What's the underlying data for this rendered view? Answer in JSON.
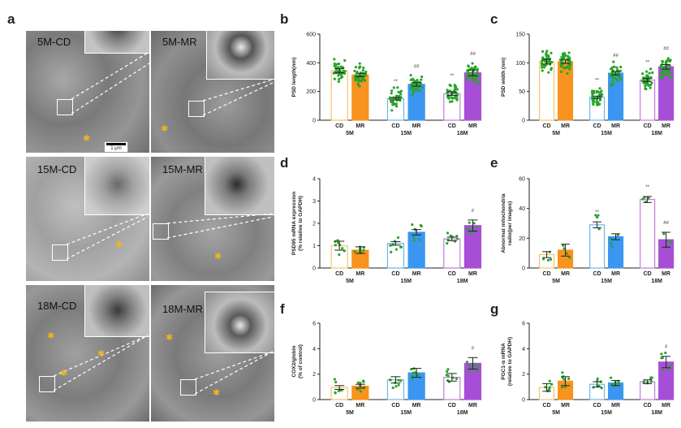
{
  "panel_letters": {
    "a": "a",
    "b": "b",
    "c": "c",
    "d": "d",
    "e": "e",
    "f": "f",
    "g": "g"
  },
  "em_panels": [
    {
      "label": "5M-CD"
    },
    {
      "label": "5M-MR"
    },
    {
      "label": "15M-CD"
    },
    {
      "label": "15M-MR"
    },
    {
      "label": "18M-CD"
    },
    {
      "label": "18M-MR"
    }
  ],
  "scale_bar_label": "1 μm",
  "colors": {
    "cd5": "#f5c36b",
    "mr5": "#f7931e",
    "cd15": "#6bb6f0",
    "mr15": "#3a96f0",
    "cd18": "#c47be0",
    "mr18": "#a64fd6",
    "dots": "#2aa52a",
    "err": "#222222"
  },
  "chart_data": [
    {
      "panel": "b",
      "type": "bar",
      "ylabel": "PSD length(nm)",
      "ylim": [
        0,
        600
      ],
      "yticks": [
        0,
        200,
        400,
        600
      ],
      "groups": [
        "5M",
        "15M",
        "18M"
      ],
      "categories": [
        "CD",
        "MR",
        "CD",
        "MR",
        "CD",
        "MR"
      ],
      "values": [
        345,
        315,
        150,
        250,
        185,
        330
      ],
      "errors": [
        15,
        12,
        8,
        12,
        12,
        20
      ],
      "annotations": [
        "",
        "",
        "**",
        "##",
        "**",
        "##"
      ]
    },
    {
      "panel": "c",
      "type": "bar",
      "ylabel": "PSD width (nm)",
      "ylim": [
        0,
        150
      ],
      "yticks": [
        0,
        50,
        100,
        150
      ],
      "groups": [
        "5M",
        "15M",
        "18M"
      ],
      "categories": [
        "CD",
        "MR",
        "CD",
        "MR",
        "CD",
        "MR"
      ],
      "values": [
        102,
        102,
        40,
        82,
        70,
        93
      ],
      "errors": [
        4,
        3,
        2,
        3,
        3,
        4
      ],
      "annotations": [
        "",
        "",
        "**",
        "##",
        "**",
        "##"
      ]
    },
    {
      "panel": "d",
      "type": "bar",
      "ylabel": "PSD95 mRNA expression (% relative to GAPDH)",
      "ylim": [
        0,
        4
      ],
      "yticks": [
        0,
        1,
        2,
        3,
        4
      ],
      "groups": [
        "5M",
        "15M",
        "18M"
      ],
      "categories": [
        "CD",
        "MR",
        "CD",
        "MR",
        "CD",
        "MR"
      ],
      "values": [
        1.0,
        0.8,
        1.1,
        1.6,
        1.3,
        1.9
      ],
      "errors": [
        0.2,
        0.15,
        0.08,
        0.12,
        0.08,
        0.25
      ],
      "annotations": [
        "",
        "",
        "",
        "",
        "",
        "#"
      ]
    },
    {
      "panel": "e",
      "type": "bar",
      "ylabel": "Abnormal mitochondria radio(per images)",
      "ylim": [
        0,
        60
      ],
      "yticks": [
        0,
        20,
        40,
        60
      ],
      "groups": [
        "5M",
        "15M",
        "18M"
      ],
      "categories": [
        "CD",
        "MR",
        "CD",
        "MR",
        "CD",
        "MR"
      ],
      "values": [
        9,
        12,
        29,
        21,
        46,
        19
      ],
      "errors": [
        2,
        4,
        2,
        2,
        2,
        5
      ],
      "annotations": [
        "",
        "",
        "**",
        "",
        "**",
        "##"
      ]
    },
    {
      "panel": "f",
      "type": "bar",
      "ylabel": "COX2/globin (% of control)",
      "ylim": [
        0,
        6
      ],
      "yticks": [
        0,
        2,
        4,
        6
      ],
      "groups": [
        "5M",
        "15M",
        "18M"
      ],
      "categories": [
        "CD",
        "MR",
        "CD",
        "MR",
        "CD",
        "MR"
      ],
      "values": [
        0.95,
        1.05,
        1.55,
        2.1,
        1.75,
        2.85
      ],
      "errors": [
        0.15,
        0.15,
        0.25,
        0.35,
        0.3,
        0.45
      ],
      "annotations": [
        "",
        "",
        "",
        "",
        "",
        "#"
      ]
    },
    {
      "panel": "g",
      "type": "bar",
      "ylabel": "PGC1-α mRNA (relative to GAPDH)",
      "ylim": [
        0,
        6
      ],
      "yticks": [
        0,
        2,
        4,
        6
      ],
      "groups": [
        "5M",
        "15M",
        "18M"
      ],
      "categories": [
        "CD",
        "MR",
        "CD",
        "MR",
        "CD",
        "MR"
      ],
      "values": [
        0.95,
        1.45,
        1.2,
        1.3,
        1.4,
        2.95
      ],
      "errors": [
        0.3,
        0.35,
        0.2,
        0.2,
        0.15,
        0.45
      ],
      "annotations": [
        "",
        "",
        "",
        "",
        "",
        "#"
      ]
    }
  ]
}
